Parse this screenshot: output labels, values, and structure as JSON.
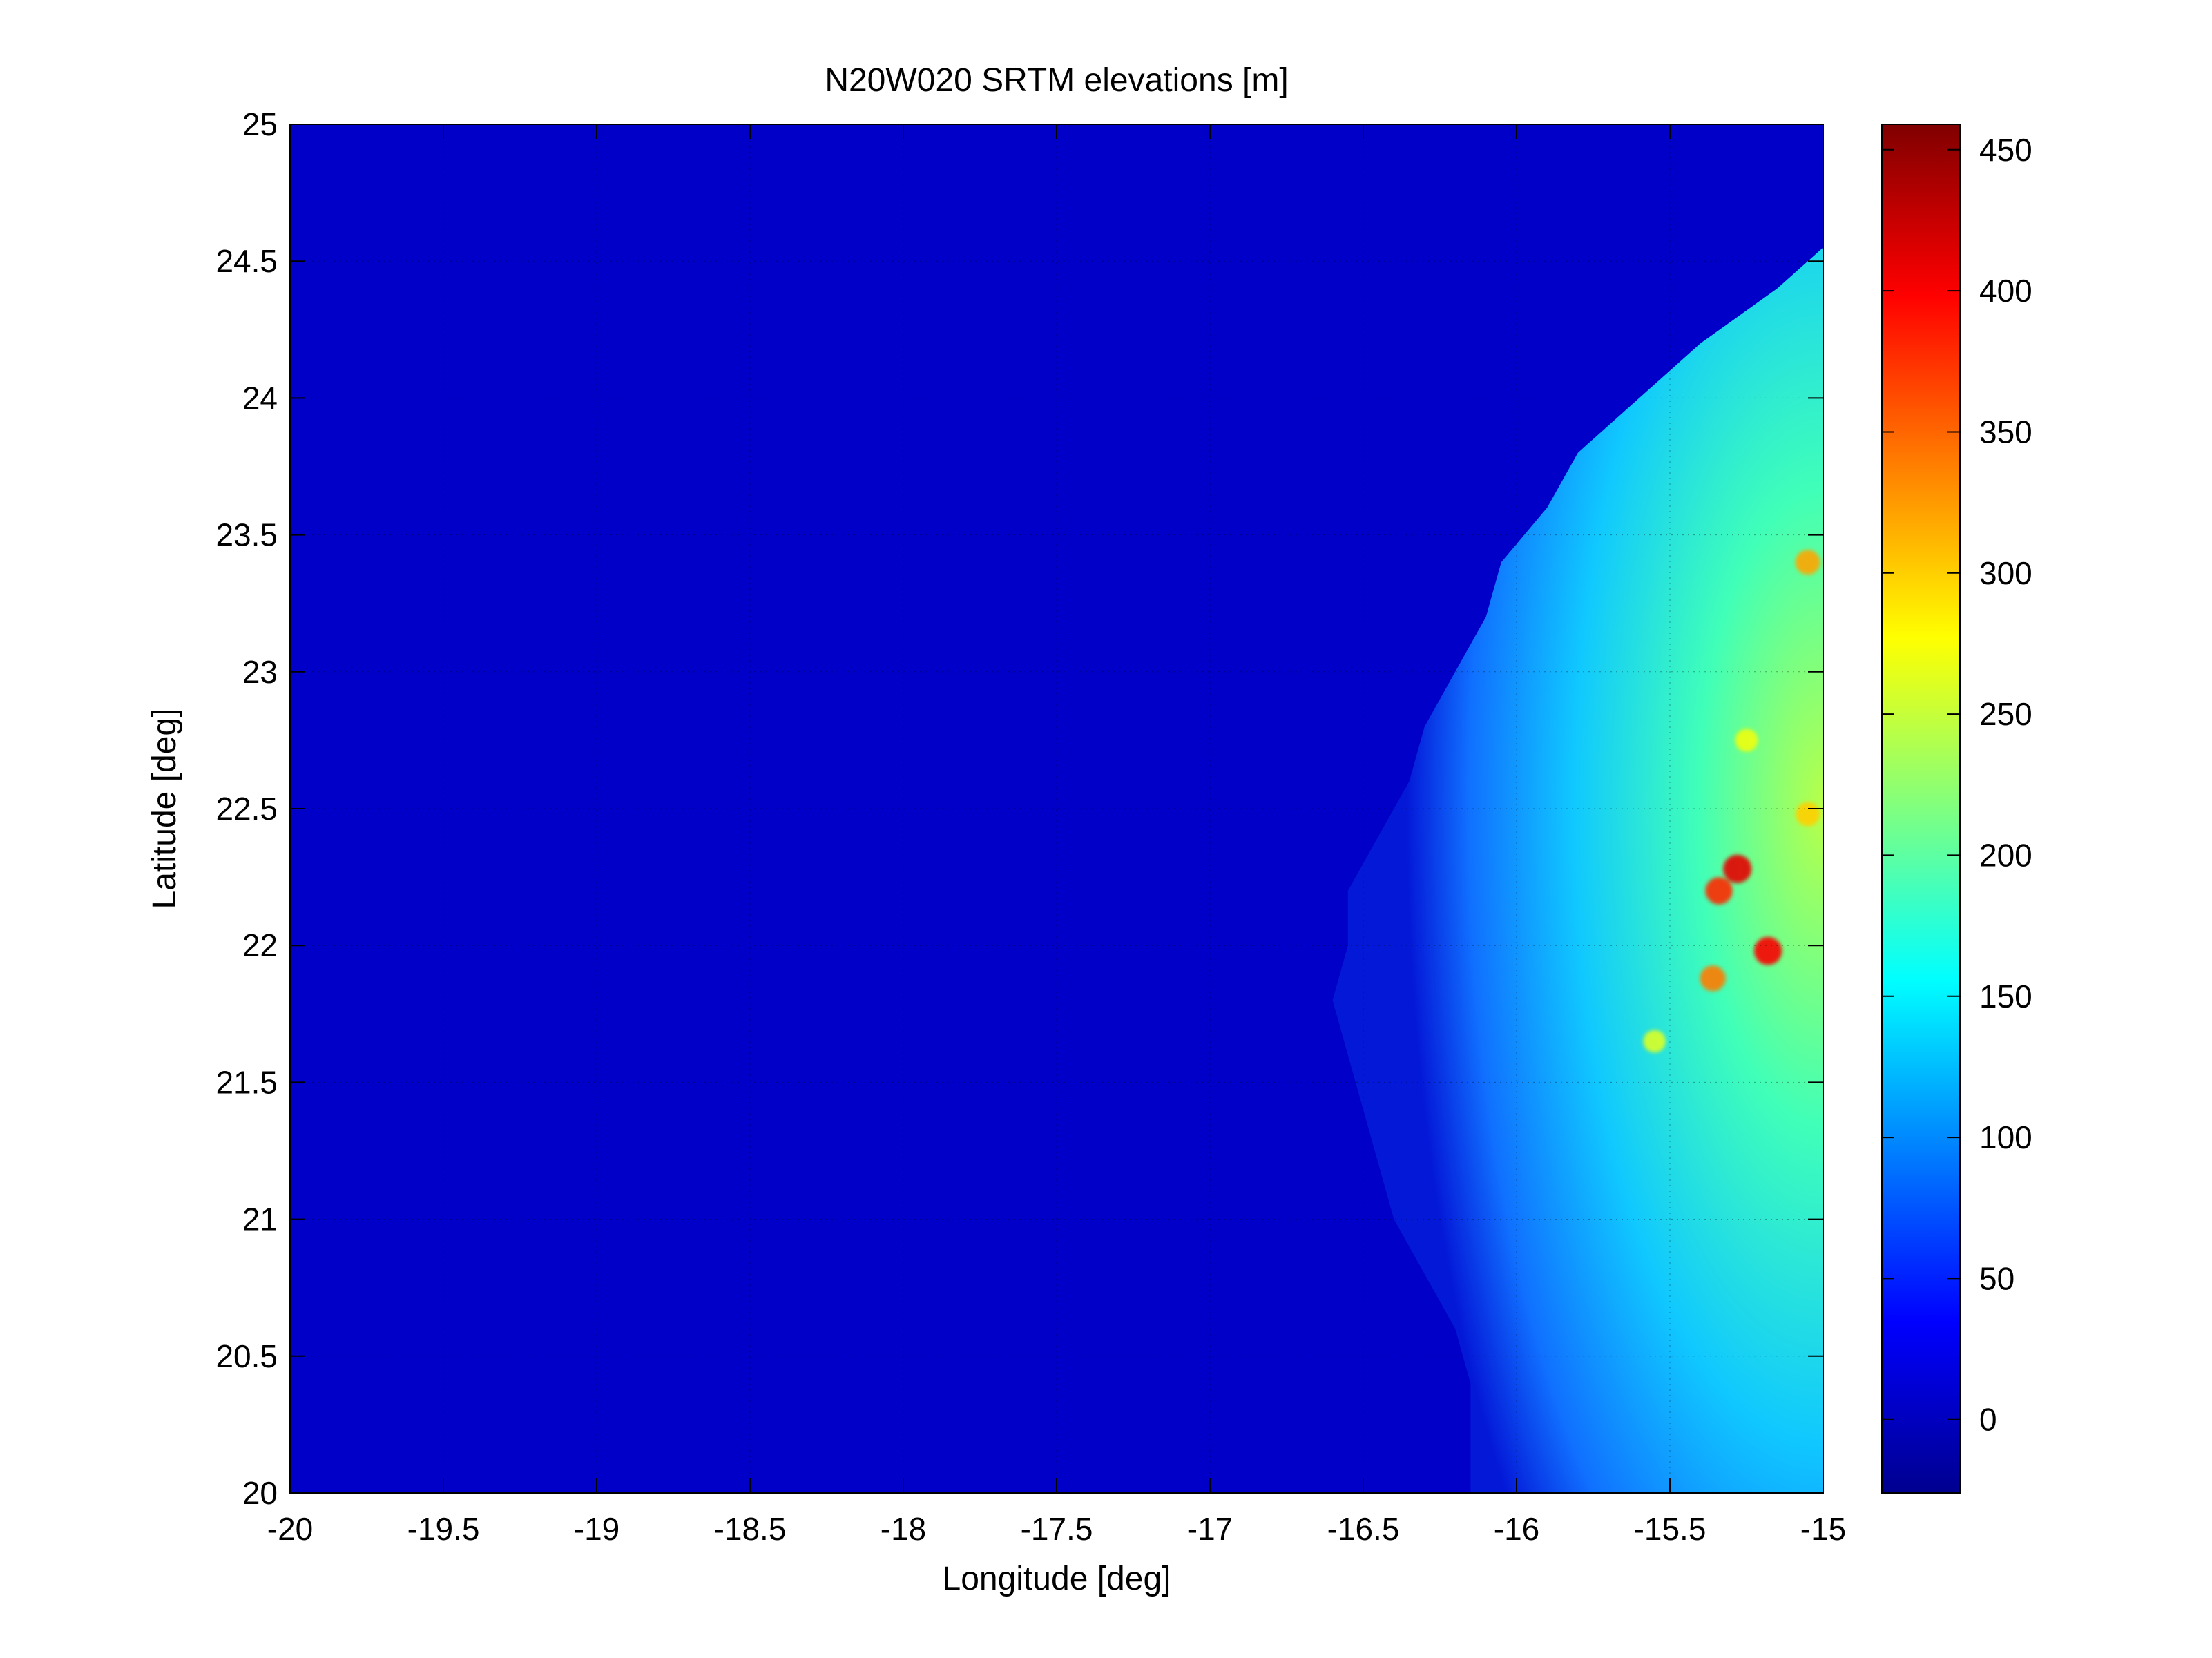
{
  "chart_data": {
    "type": "heatmap",
    "title": "N20W020 SRTM elevations [m]",
    "xlabel": "Longitude [deg]",
    "ylabel": "Latitude [deg]",
    "xlim": [
      -20,
      -15
    ],
    "ylim": [
      20,
      25
    ],
    "x_ticks": [
      -20,
      -19.5,
      -19,
      -18.5,
      -18,
      -17.5,
      -17,
      -16.5,
      -16,
      -15.5,
      -15
    ],
    "x_tick_labels": [
      "-20",
      "-19.5",
      "-19",
      "-18.5",
      "-18",
      "-17.5",
      "-17",
      "-16.5",
      "-16",
      "-15.5",
      "-15"
    ],
    "y_ticks": [
      20,
      20.5,
      21,
      21.5,
      22,
      22.5,
      23,
      23.5,
      24,
      24.5,
      25
    ],
    "y_tick_labels": [
      "20",
      "20.5",
      "21",
      "21.5",
      "22",
      "22.5",
      "23",
      "23.5",
      "24",
      "24.5",
      "25"
    ],
    "grid": true,
    "colormap": "jet",
    "colorbar": {
      "range": [
        -26,
        459
      ],
      "ticks": [
        0,
        50,
        100,
        150,
        200,
        250,
        300,
        350,
        400,
        450
      ],
      "tick_labels": [
        "0",
        "50",
        "100",
        "150",
        "200",
        "250",
        "300",
        "350",
        "400",
        "450"
      ]
    },
    "sea_value": 0,
    "coastline": [
      {
        "lat": 24.55,
        "lon": -15.0
      },
      {
        "lat": 24.4,
        "lon": -15.15
      },
      {
        "lat": 24.2,
        "lon": -15.4
      },
      {
        "lat": 24.0,
        "lon": -15.6
      },
      {
        "lat": 23.8,
        "lon": -15.8
      },
      {
        "lat": 23.6,
        "lon": -15.9
      },
      {
        "lat": 23.4,
        "lon": -16.05
      },
      {
        "lat": 23.2,
        "lon": -16.1
      },
      {
        "lat": 23.0,
        "lon": -16.2
      },
      {
        "lat": 22.8,
        "lon": -16.3
      },
      {
        "lat": 22.6,
        "lon": -16.35
      },
      {
        "lat": 22.4,
        "lon": -16.45
      },
      {
        "lat": 22.2,
        "lon": -16.55
      },
      {
        "lat": 22.0,
        "lon": -16.55
      },
      {
        "lat": 21.8,
        "lon": -16.6
      },
      {
        "lat": 21.6,
        "lon": -16.55
      },
      {
        "lat": 21.4,
        "lon": -16.5
      },
      {
        "lat": 21.2,
        "lon": -16.45
      },
      {
        "lat": 21.0,
        "lon": -16.4
      },
      {
        "lat": 20.8,
        "lon": -16.3
      },
      {
        "lat": 20.6,
        "lon": -16.2
      },
      {
        "lat": 20.4,
        "lon": -16.15
      },
      {
        "lat": 20.2,
        "lon": -16.15
      },
      {
        "lat": 20.0,
        "lon": -16.15
      }
    ],
    "peaks": [
      {
        "lon": -15.28,
        "lat": 22.28,
        "elev": 410
      },
      {
        "lon": -15.34,
        "lat": 22.2,
        "elev": 380
      },
      {
        "lon": -15.18,
        "lat": 21.98,
        "elev": 400
      },
      {
        "lon": -15.36,
        "lat": 21.88,
        "elev": 340
      },
      {
        "lon": -15.05,
        "lat": 23.4,
        "elev": 320
      },
      {
        "lon": -15.05,
        "lat": 22.48,
        "elev": 300
      },
      {
        "lon": -15.25,
        "lat": 22.75,
        "elev": 270
      },
      {
        "lon": -15.55,
        "lat": 21.65,
        "elev": 260
      }
    ]
  }
}
